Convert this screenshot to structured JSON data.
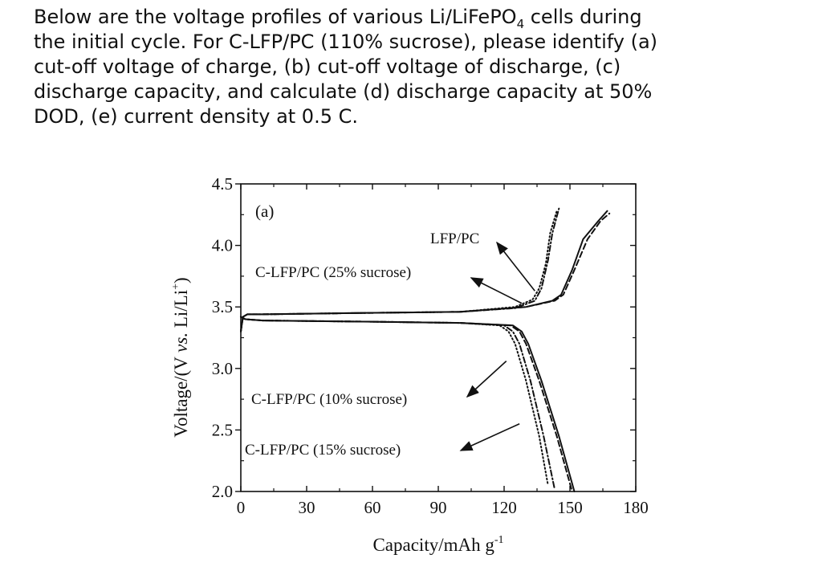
{
  "question": {
    "line1_pre": "Below are the voltage profiles of various Li/LiFePO",
    "line1_sub": "4",
    "line1_post": " cells during",
    "line2": "the initial cycle. For C-LFP/PC (110% sucrose), please identify (a)",
    "line3": "cut-off voltage of charge, (b) cut-off voltage of discharge, (c)",
    "line4": "discharge capacity, and calculate (d) discharge capacity at 50%",
    "line5": "DOD, (e) current density at 0.5 C."
  },
  "chart_data": {
    "type": "line",
    "panel_label": "(a)",
    "xlabel": "Capacity/mAh g",
    "xlabel_sup": "-1",
    "ylabel_pre": "Voltage/(V ",
    "ylabel_vs": "vs.",
    "ylabel_post": " Li/Li",
    "ylabel_sup": "+",
    "ylabel_close": ")",
    "xlim": [
      0,
      180
    ],
    "ylim": [
      2.0,
      4.5
    ],
    "xticks": [
      "0",
      "30",
      "60",
      "90",
      "120",
      "150",
      "180"
    ],
    "yticks": [
      "2.0",
      "2.5",
      "3.0",
      "3.5",
      "4.0",
      "4.5"
    ],
    "annotations": [
      {
        "text": "LFP/PC",
        "target_series": "LFP/PC"
      },
      {
        "text": "C-LFP/PC (25% sucrose)",
        "target_series": "C-LFP/PC (25% sucrose)"
      },
      {
        "text": "C-LFP/PC (10% sucrose)",
        "target_series": "C-LFP/PC (10% sucrose)"
      },
      {
        "text": "C-LFP/PC (15% sucrose)",
        "target_series": "C-LFP/PC (15% sucrose)"
      }
    ],
    "series": [
      {
        "name": "LFP/PC",
        "style": "dotted",
        "charge": {
          "x": [
            0,
            1,
            3,
            10,
            50,
            100,
            125,
            133,
            136,
            139,
            141,
            144
          ],
          "y": [
            3.3,
            3.42,
            3.44,
            3.44,
            3.45,
            3.46,
            3.5,
            3.56,
            3.65,
            3.85,
            4.1,
            4.28
          ]
        },
        "discharge": {
          "x": [
            0,
            2,
            10,
            60,
            100,
            118,
            122,
            125,
            130,
            136,
            140
          ],
          "y": [
            3.42,
            3.4,
            3.39,
            3.38,
            3.37,
            3.35,
            3.3,
            3.2,
            2.9,
            2.45,
            2.05
          ]
        }
      },
      {
        "name": "C-LFP/PC (25% sucrose)",
        "style": "dash-dot",
        "charge": {
          "x": [
            0,
            1,
            3,
            10,
            50,
            100,
            125,
            134,
            137,
            140,
            142,
            145
          ],
          "y": [
            3.3,
            3.42,
            3.44,
            3.44,
            3.45,
            3.46,
            3.49,
            3.55,
            3.65,
            3.88,
            4.1,
            4.3
          ]
        },
        "discharge": {
          "x": [
            0,
            2,
            10,
            60,
            100,
            120,
            124,
            127,
            132,
            138,
            143
          ],
          "y": [
            3.42,
            3.4,
            3.39,
            3.38,
            3.37,
            3.35,
            3.3,
            3.2,
            2.9,
            2.45,
            2.02
          ]
        }
      },
      {
        "name": "C-LFP/PC (10% sucrose)",
        "style": "solid",
        "charge": {
          "x": [
            0,
            1,
            3,
            10,
            50,
            100,
            130,
            142,
            146,
            151,
            156,
            163,
            167
          ],
          "y": [
            3.3,
            3.42,
            3.44,
            3.44,
            3.45,
            3.46,
            3.5,
            3.55,
            3.6,
            3.8,
            4.05,
            4.2,
            4.28
          ]
        },
        "discharge": {
          "x": [
            0,
            2,
            10,
            60,
            100,
            124,
            128,
            131,
            137,
            145,
            152
          ],
          "y": [
            3.42,
            3.4,
            3.39,
            3.38,
            3.37,
            3.35,
            3.3,
            3.2,
            2.9,
            2.45,
            2.0
          ]
        }
      },
      {
        "name": "C-LFP/PC (15% sucrose)",
        "style": "dashed",
        "charge": {
          "x": [
            0,
            1,
            3,
            10,
            50,
            100,
            130,
            143,
            147,
            152,
            158,
            164,
            168
          ],
          "y": [
            3.3,
            3.42,
            3.44,
            3.44,
            3.45,
            3.46,
            3.5,
            3.55,
            3.6,
            3.8,
            4.05,
            4.2,
            4.26
          ]
        },
        "discharge": {
          "x": [
            0,
            2,
            10,
            60,
            100,
            123,
            127,
            130,
            136,
            144,
            151
          ],
          "y": [
            3.42,
            3.4,
            3.39,
            3.38,
            3.37,
            3.35,
            3.3,
            3.2,
            2.9,
            2.45,
            2.0
          ]
        }
      }
    ],
    "grid": false,
    "legend": "none"
  }
}
